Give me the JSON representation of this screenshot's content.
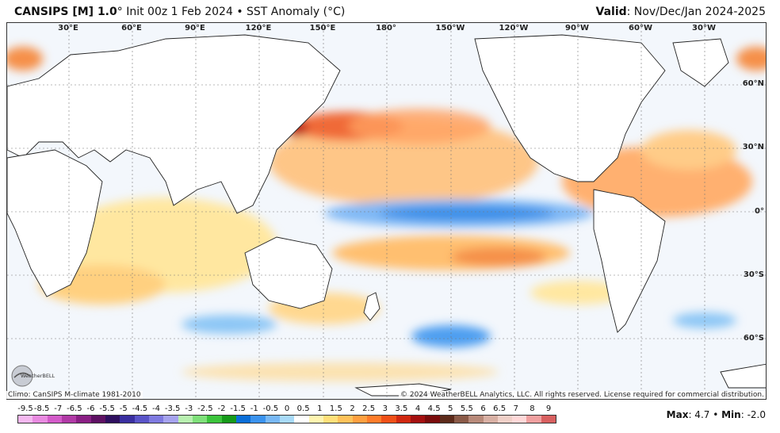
{
  "header": {
    "model": "CANSIPS [M] 1.0",
    "degree": "°",
    "init": " Init 00z 1 Feb 2024 • SST Anomaly (°C)",
    "valid_label": "Valid",
    "valid_value": ": Nov/Dec/Jan 2024-2025"
  },
  "longitudes": [
    "30°E",
    "60°E",
    "90°E",
    "120°E",
    "150°E",
    "180°",
    "150°W",
    "120°W",
    "90°W",
    "60°W",
    "30°W"
  ],
  "latitudes": [
    "60°N",
    "30°N",
    "0°",
    "30°S",
    "60°S"
  ],
  "colorbar": {
    "labels": [
      "-9.5",
      "-8.5",
      "-7",
      "-6.5",
      "-6",
      "-5.5",
      "-5",
      "-4.5",
      "-4",
      "-3.5",
      "-3",
      "-2.5",
      "-2",
      "-1.5",
      "-1",
      "-0.5",
      "0",
      "0.5",
      "1",
      "1.5",
      "2",
      "2.5",
      "3",
      "3.5",
      "4",
      "4.5",
      "5",
      "5.5",
      "6",
      "6.5",
      "7",
      "8",
      "9"
    ],
    "colors": [
      "#f5b8f0",
      "#e88ae0",
      "#d35bc9",
      "#b13aa6",
      "#8a1f84",
      "#5e1163",
      "#2e0f5e",
      "#3a2fa0",
      "#5a54c8",
      "#7f7ae0",
      "#a6a3ee",
      "#b8f0b0",
      "#7fe07a",
      "#3cc43c",
      "#169a1a",
      "#0b6ed8",
      "#3b93ee",
      "#78b8f5",
      "#a8daf8",
      "#ffffff",
      "#fff5b0",
      "#ffe07a",
      "#ffc25a",
      "#ffa040",
      "#ff7c2a",
      "#f05018",
      "#d02810",
      "#a41010",
      "#7a0c0c",
      "#5c2a1a",
      "#8a5a48",
      "#b88a7a",
      "#d8b0a4",
      "#f0d0c8",
      "#ffd8d8",
      "#f0a0a0",
      "#d86060"
    ]
  },
  "footer": {
    "climo": "Climo: CanSIPS M-climate 1981-2010",
    "copyright": "© 2024 WeatherBELL Analytics, LLC. All rights reserved. License required for commercial distribution.",
    "max_label": "Max",
    "max_value": ": 4.7 • ",
    "min_label": "Min",
    "min_value": ": -2.0"
  },
  "logo_text": "WeatherBELL"
}
